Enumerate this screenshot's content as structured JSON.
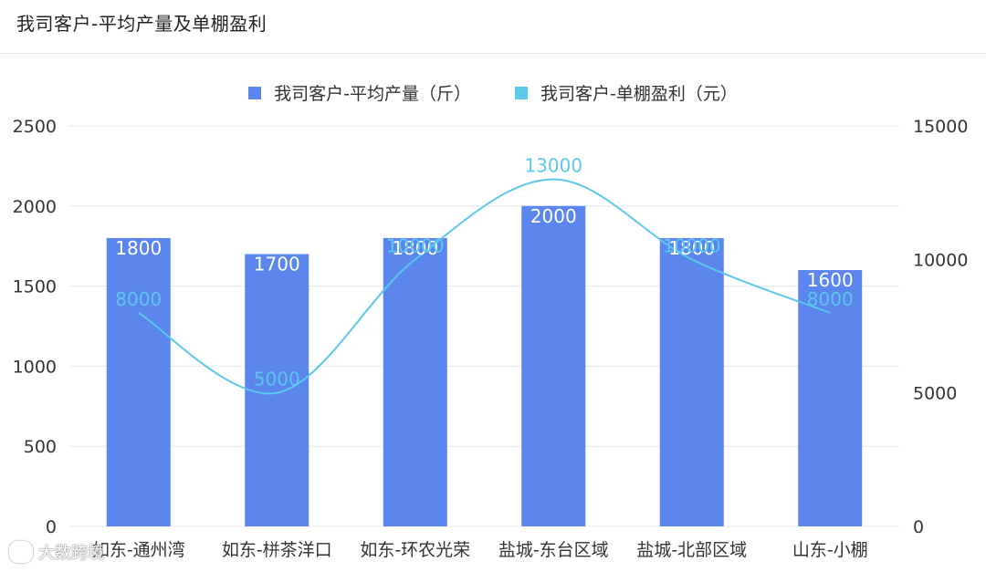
{
  "title": "我司客户-平均产量及单棚盈利",
  "legend": [
    {
      "label": "我司客户-平均产量（斤）",
      "kind": "bar"
    },
    {
      "label": "我司客户-单棚盈利（元）",
      "kind": "line"
    }
  ],
  "colors": {
    "bar": "#5B86EE",
    "line": "#5BC8EC",
    "grid": "#e8e8e8",
    "axis_text": "#333333"
  },
  "watermark": {
    "text": "大数跨境"
  },
  "chart_data": {
    "type": "bar",
    "categories": [
      "如东-通州湾",
      "如东-栟茶洋口",
      "如东-环农光荣",
      "盐城-东台区域",
      "盐城-北部区域",
      "山东-小棚"
    ],
    "series": [
      {
        "name": "我司客户-平均产量（斤）",
        "type": "bar",
        "axis": "left",
        "values": [
          1800,
          1700,
          1800,
          2000,
          1800,
          1600
        ]
      },
      {
        "name": "我司客户-单棚盈利（元）",
        "type": "line",
        "axis": "right",
        "smooth": true,
        "values": [
          8000,
          5000,
          10000,
          13000,
          10000,
          8000
        ]
      }
    ],
    "left_axis": {
      "ylim": [
        0,
        2500
      ],
      "ticks": [
        0,
        500,
        1000,
        1500,
        2000,
        2500
      ]
    },
    "right_axis": {
      "ylim": [
        0,
        15000
      ],
      "ticks": [
        0,
        5000,
        10000,
        15000
      ]
    },
    "grid": true,
    "legend_position": "top-center"
  }
}
